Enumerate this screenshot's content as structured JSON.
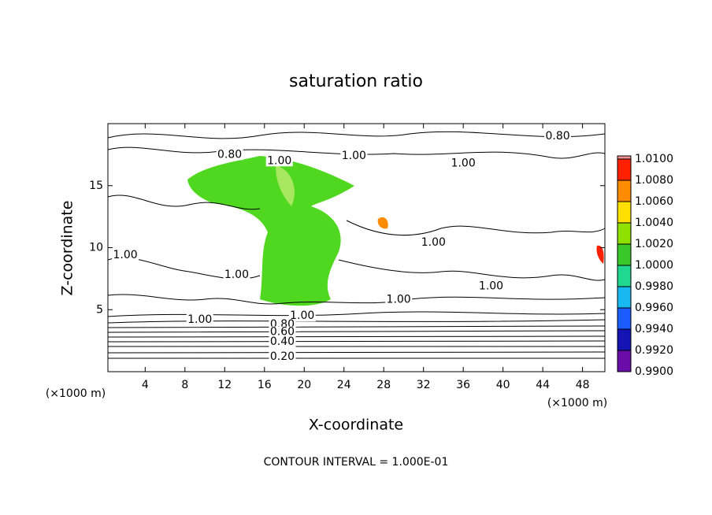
{
  "chart_data": {
    "type": "contour",
    "title": "saturation ratio",
    "x_label": "X-coordinate",
    "y_label": "Z-coordinate",
    "x_unit": "(×1000 m)",
    "footer": "CONTOUR INTERVAL = 1.000E-01",
    "xlim": [
      0.25,
      50.25
    ],
    "xticks": [
      4,
      8,
      12,
      16,
      20,
      24,
      28,
      32,
      36,
      40,
      44,
      48
    ],
    "ylim": [
      0,
      20
    ],
    "yticks": [
      5,
      10,
      15
    ],
    "contour_labels": [
      {
        "label": "0.80",
        "x": 45.5,
        "y": 19.0
      },
      {
        "label": "0.80",
        "x": 12.5,
        "y": 17.5
      },
      {
        "label": "1.00",
        "x": 17.5,
        "y": 17.0
      },
      {
        "label": "1.00",
        "x": 25.0,
        "y": 17.4
      },
      {
        "label": "1.00",
        "x": 36.0,
        "y": 16.8
      },
      {
        "label": "1.00",
        "x": 2.0,
        "y": 9.4
      },
      {
        "label": "1.00",
        "x": 13.2,
        "y": 7.8
      },
      {
        "label": "1.00",
        "x": 33.0,
        "y": 10.4
      },
      {
        "label": "1.00",
        "x": 38.8,
        "y": 6.9
      },
      {
        "label": "1.00",
        "x": 29.5,
        "y": 5.8
      },
      {
        "label": "1.00",
        "x": 9.5,
        "y": 4.2
      },
      {
        "label": "1.00",
        "x": 19.8,
        "y": 4.5
      },
      {
        "label": "0.80",
        "x": 17.8,
        "y": 3.8
      },
      {
        "label": "0.60",
        "x": 17.8,
        "y": 3.2
      },
      {
        "label": "0.40",
        "x": 17.8,
        "y": 2.4
      },
      {
        "label": "0.20",
        "x": 17.8,
        "y": 1.2
      }
    ],
    "colorbar": {
      "ticks": [
        {
          "value": 0.99,
          "label": "0.9900"
        },
        {
          "value": 0.992,
          "label": "0.9920"
        },
        {
          "value": 0.994,
          "label": "0.9940"
        },
        {
          "value": 0.996,
          "label": "0.9960"
        },
        {
          "value": 0.998,
          "label": "0.9980"
        },
        {
          "value": 1.0,
          "label": "1.0000"
        },
        {
          "value": 1.002,
          "label": "1.0020"
        },
        {
          "value": 1.004,
          "label": "1.0040"
        },
        {
          "value": 1.006,
          "label": "1.0060"
        },
        {
          "value": 1.008,
          "label": "1.0080"
        },
        {
          "value": 1.01,
          "label": "1.0100"
        }
      ],
      "colors": [
        "#6a0da8",
        "#1414b4",
        "#1a5cff",
        "#18b8f0",
        "#20d890",
        "#38c828",
        "#90e000",
        "#ffe000",
        "#ff8c00",
        "#ff2000",
        "#f09090"
      ]
    }
  }
}
